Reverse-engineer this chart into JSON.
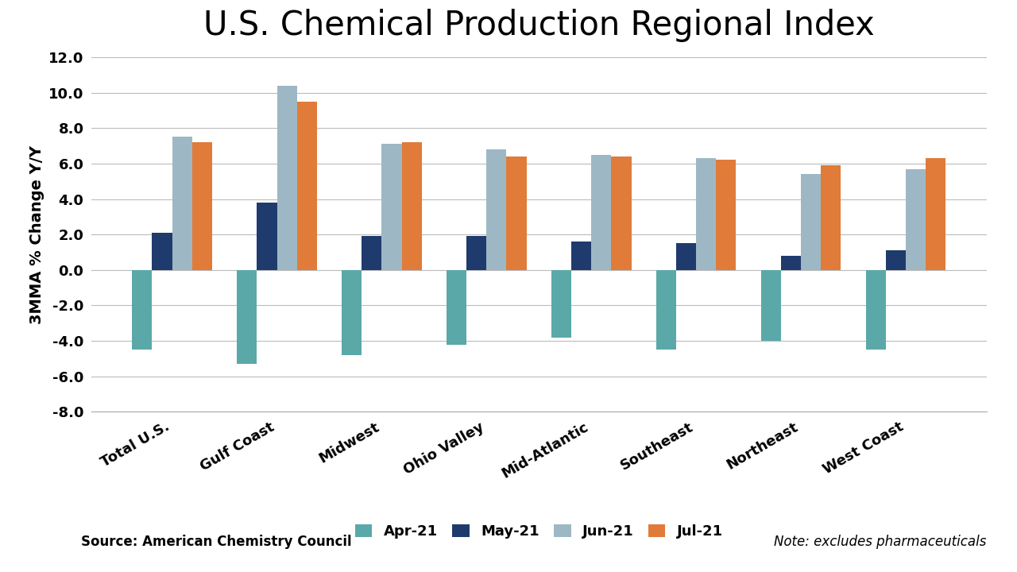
{
  "title": "U.S. Chemical Production Regional Index",
  "ylabel": "3MMA % Change Y/Y",
  "categories": [
    "Total U.S.",
    "Gulf Coast",
    "Midwest",
    "Ohio Valley",
    "Mid-Atlantic",
    "Southeast",
    "Northeast",
    "West Coast"
  ],
  "series": {
    "Apr-21": [
      -4.5,
      -5.3,
      -4.8,
      -4.2,
      -3.8,
      -4.5,
      -4.0,
      -4.5
    ],
    "May-21": [
      2.1,
      3.8,
      1.9,
      1.9,
      1.6,
      1.5,
      0.8,
      1.1
    ],
    "Jun-21": [
      7.5,
      10.4,
      7.1,
      6.8,
      6.5,
      6.3,
      5.4,
      5.7
    ],
    "Jul-21": [
      7.2,
      9.5,
      7.2,
      6.4,
      6.4,
      6.2,
      5.9,
      6.3
    ]
  },
  "colors": {
    "Apr-21": "#5BA8A8",
    "May-21": "#1F3B6E",
    "Jun-21": "#9DB8C4",
    "Jul-21": "#E07B39"
  },
  "ylim": [
    -8.0,
    12.0
  ],
  "yticks": [
    -8.0,
    -6.0,
    -4.0,
    -2.0,
    0.0,
    2.0,
    4.0,
    6.0,
    8.0,
    10.0,
    12.0
  ],
  "source_text": "Source: American Chemistry Council",
  "note_text": "Note: excludes pharmaceuticals",
  "background_color": "#FFFFFF",
  "grid_color": "#BBBBBB",
  "title_fontsize": 30,
  "axis_label_fontsize": 14,
  "tick_fontsize": 13,
  "legend_fontsize": 13,
  "source_fontsize": 12,
  "bar_width": 0.19
}
